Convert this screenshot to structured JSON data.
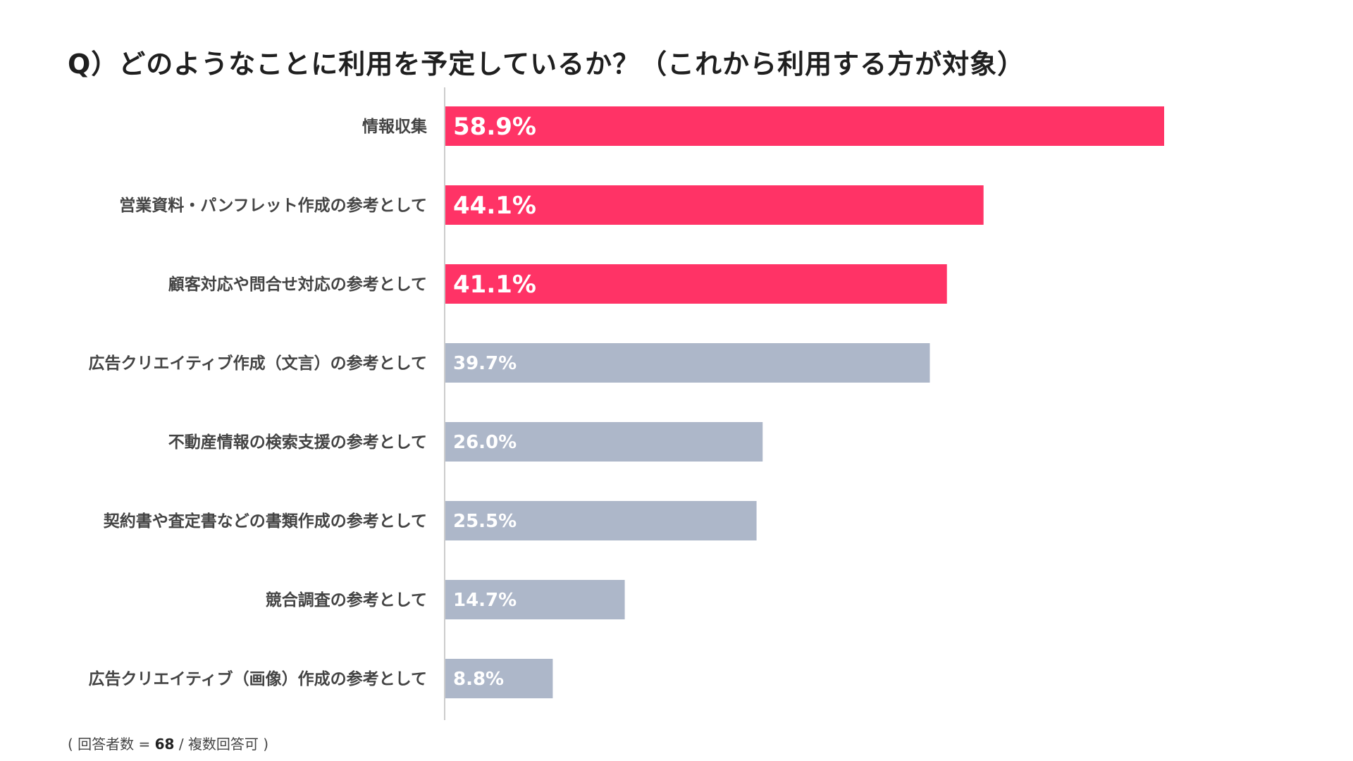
{
  "title": "Q）どのようなことに利用を予定しているか？（これから利用する方が対象）",
  "footnote": {
    "prefix": "( 回答者数 = ",
    "count": "68",
    "suffix": " / 複数回答可 )"
  },
  "colors": {
    "highlight": "#ff3366",
    "normal": "#adb7c9",
    "axis": "#cccccc",
    "label": "#444444",
    "value_text": "#ffffff"
  },
  "chart_data": {
    "type": "bar",
    "orientation": "horizontal",
    "categories": [
      "情報収集",
      "営業資料・パンフレット作成の参考として",
      "顧客対応や問合せ対応の参考として",
      "広告クリエイティブ作成（文言）の参考として",
      "不動産情報の検索支援の参考として",
      "契約書や査定書などの書類作成の参考として",
      "競合調査の参考として",
      "広告クリエイティブ（画像）作成の参考として"
    ],
    "values": [
      58.9,
      44.1,
      41.1,
      39.7,
      26.0,
      25.5,
      14.7,
      8.8
    ],
    "value_labels": [
      "58.9%",
      "44.1%",
      "41.1%",
      "39.7%",
      "26.0%",
      "25.5%",
      "14.7%",
      "8.8%"
    ],
    "highlighted": [
      true,
      true,
      true,
      false,
      false,
      false,
      false,
      false
    ],
    "unit": "%",
    "xlim": [
      0,
      100
    ],
    "grid": false,
    "legend": "none"
  }
}
